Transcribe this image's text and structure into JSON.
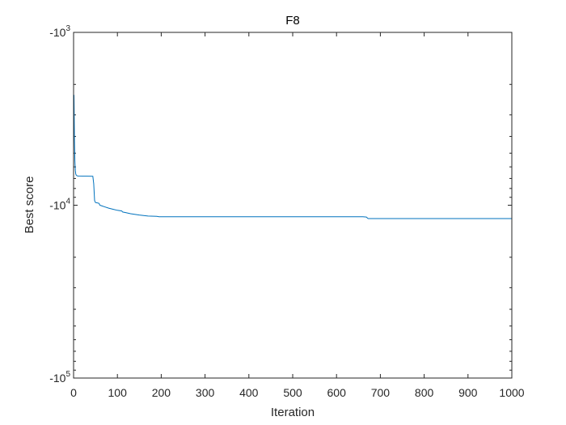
{
  "chart_data": {
    "type": "line",
    "title": "F8",
    "xlabel": "Iteration",
    "ylabel": "Best score",
    "xlim": [
      0,
      1000
    ],
    "ylim": [
      -100000,
      -1000
    ],
    "yscale": "log (negative values, magnitude increasing downward)",
    "grid": false,
    "legend": "none",
    "xticks": [
      0,
      100,
      200,
      300,
      400,
      500,
      600,
      700,
      800,
      900,
      1000
    ],
    "xtick_labels": [
      "0",
      "100",
      "200",
      "300",
      "400",
      "500",
      "600",
      "700",
      "800",
      "900",
      "1000"
    ],
    "yticks": [
      {
        "value": -1000,
        "base": "-10",
        "exp": "3"
      },
      {
        "value": -10000,
        "base": "-10",
        "exp": "4"
      },
      {
        "value": -100000,
        "base": "-10",
        "exp": "5"
      }
    ],
    "series": [
      {
        "color": "#0072BD",
        "x": [
          1,
          2,
          3,
          4,
          5,
          6,
          8,
          10,
          20,
          30,
          44,
          46,
          48,
          50,
          55,
          58,
          60,
          65,
          70,
          80,
          90,
          100,
          110,
          112,
          120,
          130,
          150,
          170,
          190,
          195,
          200,
          300,
          400,
          500,
          600,
          660,
          668,
          672,
          700,
          800,
          900,
          1000
        ],
        "y": [
          -2300,
          -4200,
          -5500,
          -6300,
          -6600,
          -6700,
          -6750,
          -6780,
          -6790,
          -6790,
          -6800,
          -7500,
          -9400,
          -9650,
          -9700,
          -9750,
          -10000,
          -10100,
          -10200,
          -10400,
          -10550,
          -10700,
          -10800,
          -10950,
          -11050,
          -11200,
          -11400,
          -11550,
          -11600,
          -11650,
          -11650,
          -11650,
          -11650,
          -11650,
          -11650,
          -11650,
          -11700,
          -11950,
          -11950,
          -11950,
          -11950,
          -11950
        ]
      }
    ]
  }
}
